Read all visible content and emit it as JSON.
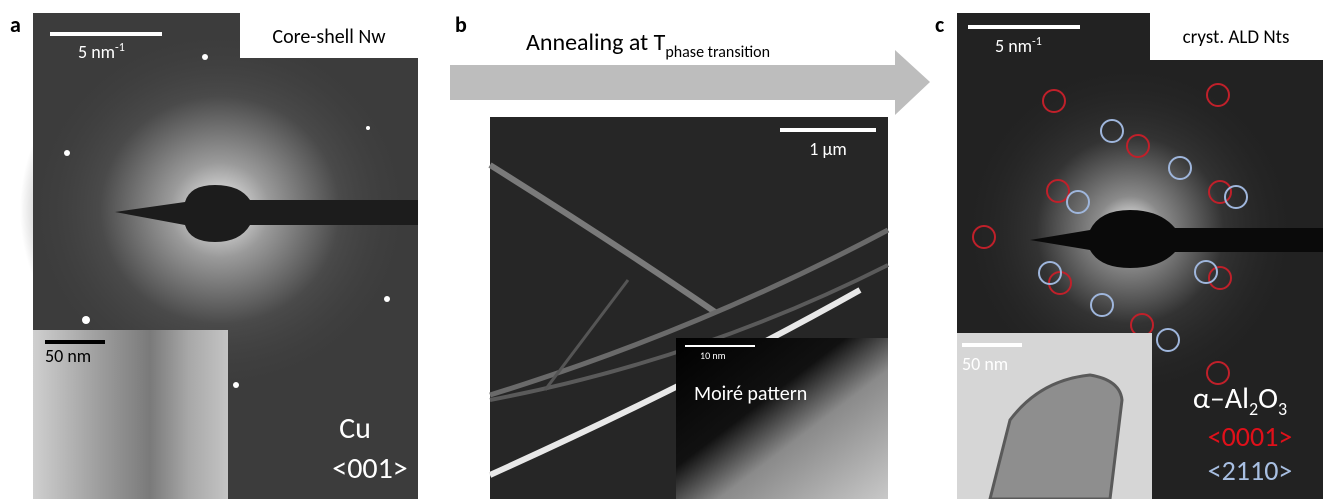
{
  "panels": [
    {
      "label": "a",
      "scale_bar": {
        "text": "5 nm",
        "sup": "-1"
      },
      "title": "Core-shell Nw",
      "inset": {
        "scale_bar": "50 nm"
      },
      "material": "Cu",
      "zone_axis": "<001>"
    },
    {
      "label": "b",
      "arrow_text": {
        "main": "Annealing at T",
        "sub": "phase transition"
      },
      "scale_bar": "1 µm",
      "inset": {
        "scale_bar": "10 nm",
        "caption": "Moiré pattern"
      }
    },
    {
      "label": "c",
      "scale_bar": {
        "text": "5 nm",
        "sup": "-1"
      },
      "title": "cryst. ALD Nts",
      "inset": {
        "scale_bar": "50 nm"
      },
      "material": {
        "prefix": "α–Al",
        "sub1": "2",
        "mid": "O",
        "sub2": "3"
      },
      "zone_axes": [
        "<0001>",
        "<2110>"
      ]
    }
  ]
}
